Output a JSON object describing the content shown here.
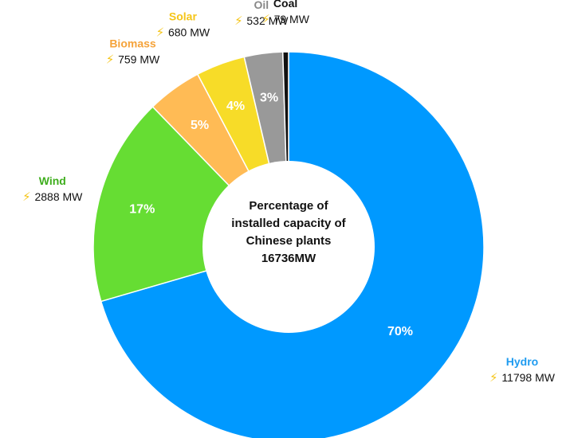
{
  "chart_data": {
    "type": "pie",
    "center_title": [
      "Percentage of",
      "installed capacity of",
      "Chinese plants",
      "16736MW"
    ],
    "unit": "MW",
    "slices": [
      {
        "name": "Hydro",
        "value": 11798,
        "percent": "70%",
        "value_label": "11798 MW",
        "color": "#0099ff",
        "name_color": "#1e9bf0"
      },
      {
        "name": "Wind",
        "value": 2888,
        "percent": "17%",
        "value_label": "2888 MW",
        "color": "#66dd33",
        "name_color": "#3fae1e"
      },
      {
        "name": "Biomass",
        "value": 759,
        "percent": "5%",
        "value_label": "759 MW",
        "color": "#ffbb55",
        "name_color": "#f5a33a"
      },
      {
        "name": "Solar",
        "value": 680,
        "percent": "4%",
        "value_label": "680 MW",
        "color": "#f7dc28",
        "name_color": "#f5c518"
      },
      {
        "name": "Oil",
        "value": 532,
        "percent": "3%",
        "value_label": "532 MW",
        "color": "#999999",
        "name_color": "#888888"
      },
      {
        "name": "Coal",
        "value": 79,
        "percent": "",
        "value_label": "79 MW",
        "color": "#111111",
        "name_color": "#111111"
      }
    ],
    "icon": "lightning-bolt-icon"
  }
}
